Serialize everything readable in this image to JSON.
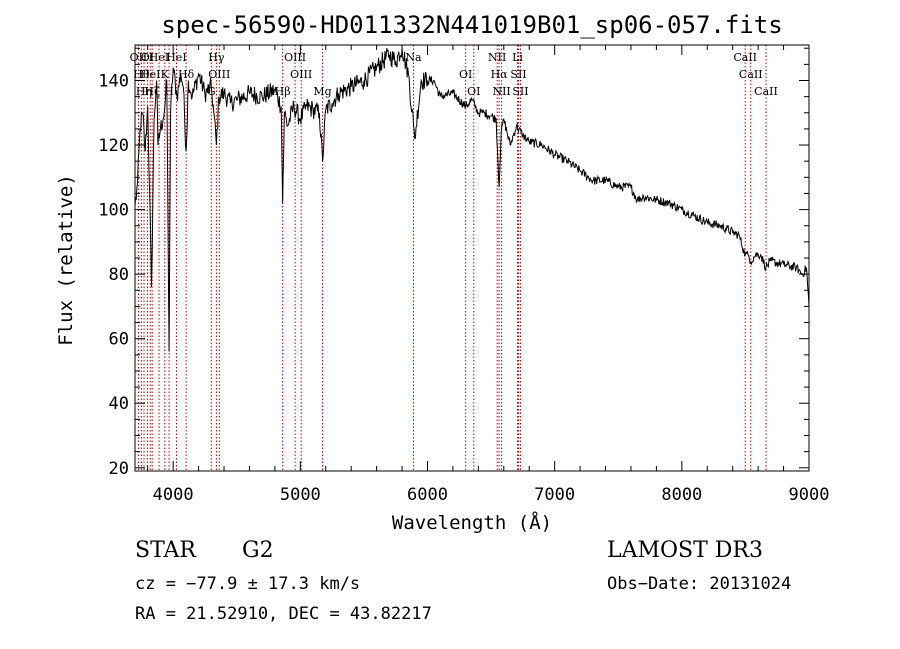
{
  "chart_data": {
    "type": "line",
    "title": "spec-56590-HD011332N441019B01_sp06-057.fits",
    "xlabel": "Wavelength (Å)",
    "ylabel": "Flux (relative)",
    "xlim": [
      3700,
      9000
    ],
    "ylim": [
      19,
      151
    ],
    "x_ticks": [
      4000,
      5000,
      6000,
      7000,
      8000,
      9000
    ],
    "y_ticks": [
      20,
      40,
      60,
      80,
      100,
      120,
      140
    ],
    "grid": false,
    "series": [
      {
        "name": "flux",
        "color": "#000000",
        "x": [
          3700,
          3720,
          3740,
          3760,
          3780,
          3800,
          3830,
          3850,
          3870,
          3880,
          3900,
          3920,
          3935,
          3950,
          3968,
          3980,
          4000,
          4030,
          4060,
          4080,
          4102,
          4120,
          4150,
          4200,
          4250,
          4300,
          4320,
          4340,
          4360,
          4400,
          4450,
          4500,
          4600,
          4700,
          4800,
          4850,
          4861,
          4875,
          4900,
          4950,
          5000,
          5050,
          5100,
          5150,
          5175,
          5200,
          5250,
          5300,
          5400,
          5500,
          5600,
          5700,
          5750,
          5800,
          5850,
          5890,
          5900,
          5950,
          6000,
          6050,
          6100,
          6200,
          6300,
          6350,
          6400,
          6450,
          6500,
          6540,
          6563,
          6580,
          6600,
          6650,
          6700,
          6750,
          6800,
          6900,
          7000,
          7100,
          7200,
          7300,
          7400,
          7500,
          7600,
          7650,
          7700,
          7800,
          7900,
          8000,
          8100,
          8200,
          8300,
          8400,
          8450,
          8498,
          8520,
          8542,
          8580,
          8620,
          8662,
          8700,
          8800,
          8900,
          8950,
          8980,
          9000
        ],
        "y": [
          101,
          108,
          125,
          130,
          118,
          132,
          76,
          128,
          140,
          120,
          125,
          128,
          132,
          140,
          56,
          130,
          144,
          135,
          142,
          138,
          118,
          140,
          135,
          142,
          136,
          138,
          130,
          120,
          135,
          136,
          133,
          134,
          136,
          135,
          137,
          132,
          102,
          130,
          126,
          132,
          128,
          132,
          131,
          130,
          115,
          131,
          133,
          136,
          138,
          140,
          144,
          148,
          146,
          150,
          142,
          126,
          122,
          140,
          140,
          140,
          135,
          136,
          132,
          134,
          130,
          130,
          129,
          128,
          107,
          124,
          128,
          120,
          126,
          123,
          121,
          120,
          117,
          115,
          112,
          109,
          109,
          107,
          107,
          103,
          104,
          103,
          102,
          100,
          98,
          96,
          95,
          93,
          92,
          86,
          86,
          84,
          86,
          86,
          82,
          84,
          83,
          82,
          80,
          82,
          70
        ]
      }
    ],
    "line_markers": [
      {
        "wavelength": 3727,
        "label": "OII"
      },
      {
        "wavelength": 3750,
        "label": "Hθ"
      },
      {
        "wavelength": 3771,
        "label": "Hη"
      },
      {
        "wavelength": 3798,
        "label": "OI"
      },
      {
        "wavelength": 3820,
        "label": "HeI"
      },
      {
        "wavelength": 3835,
        "label": "Hζ"
      },
      {
        "wavelength": 3889,
        "label": "HeI"
      },
      {
        "wavelength": 3934,
        "label": "K"
      },
      {
        "wavelength": 3968,
        "label": "H"
      },
      {
        "wavelength": 4026,
        "label": "HeI"
      },
      {
        "wavelength": 4102,
        "label": "Hδ"
      },
      {
        "wavelength": 4300,
        "label": "G"
      },
      {
        "wavelength": 4340,
        "label": "Hγ"
      },
      {
        "wavelength": 4363,
        "label": "OIII"
      },
      {
        "wavelength": 4861,
        "label": "Hβ"
      },
      {
        "wavelength": 4959,
        "label": "OIII"
      },
      {
        "wavelength": 5007,
        "label": "OIII"
      },
      {
        "wavelength": 5175,
        "label": "Mg"
      },
      {
        "wavelength": 5890,
        "label": "Na"
      },
      {
        "wavelength": 6300,
        "label": "OI"
      },
      {
        "wavelength": 6364,
        "label": "OI"
      },
      {
        "wavelength": 6548,
        "label": "NII"
      },
      {
        "wavelength": 6563,
        "label": "Hα"
      },
      {
        "wavelength": 6583,
        "label": "NII"
      },
      {
        "wavelength": 6708,
        "label": "Li"
      },
      {
        "wavelength": 6716,
        "label": "SII"
      },
      {
        "wavelength": 6731,
        "label": "SII"
      },
      {
        "wavelength": 8498,
        "label": "CaII"
      },
      {
        "wavelength": 8542,
        "label": "CaII"
      },
      {
        "wavelength": 8662,
        "label": "CaII"
      }
    ]
  },
  "info": {
    "object_class": "STAR",
    "subclass": "G2",
    "survey": "LAMOST DR3",
    "cz": "cz = −77.9 ± 17.3 km/s",
    "obs_date": "Obs−Date: 20131024",
    "coords": "RA =  21.52910, DEC =  43.82217"
  }
}
